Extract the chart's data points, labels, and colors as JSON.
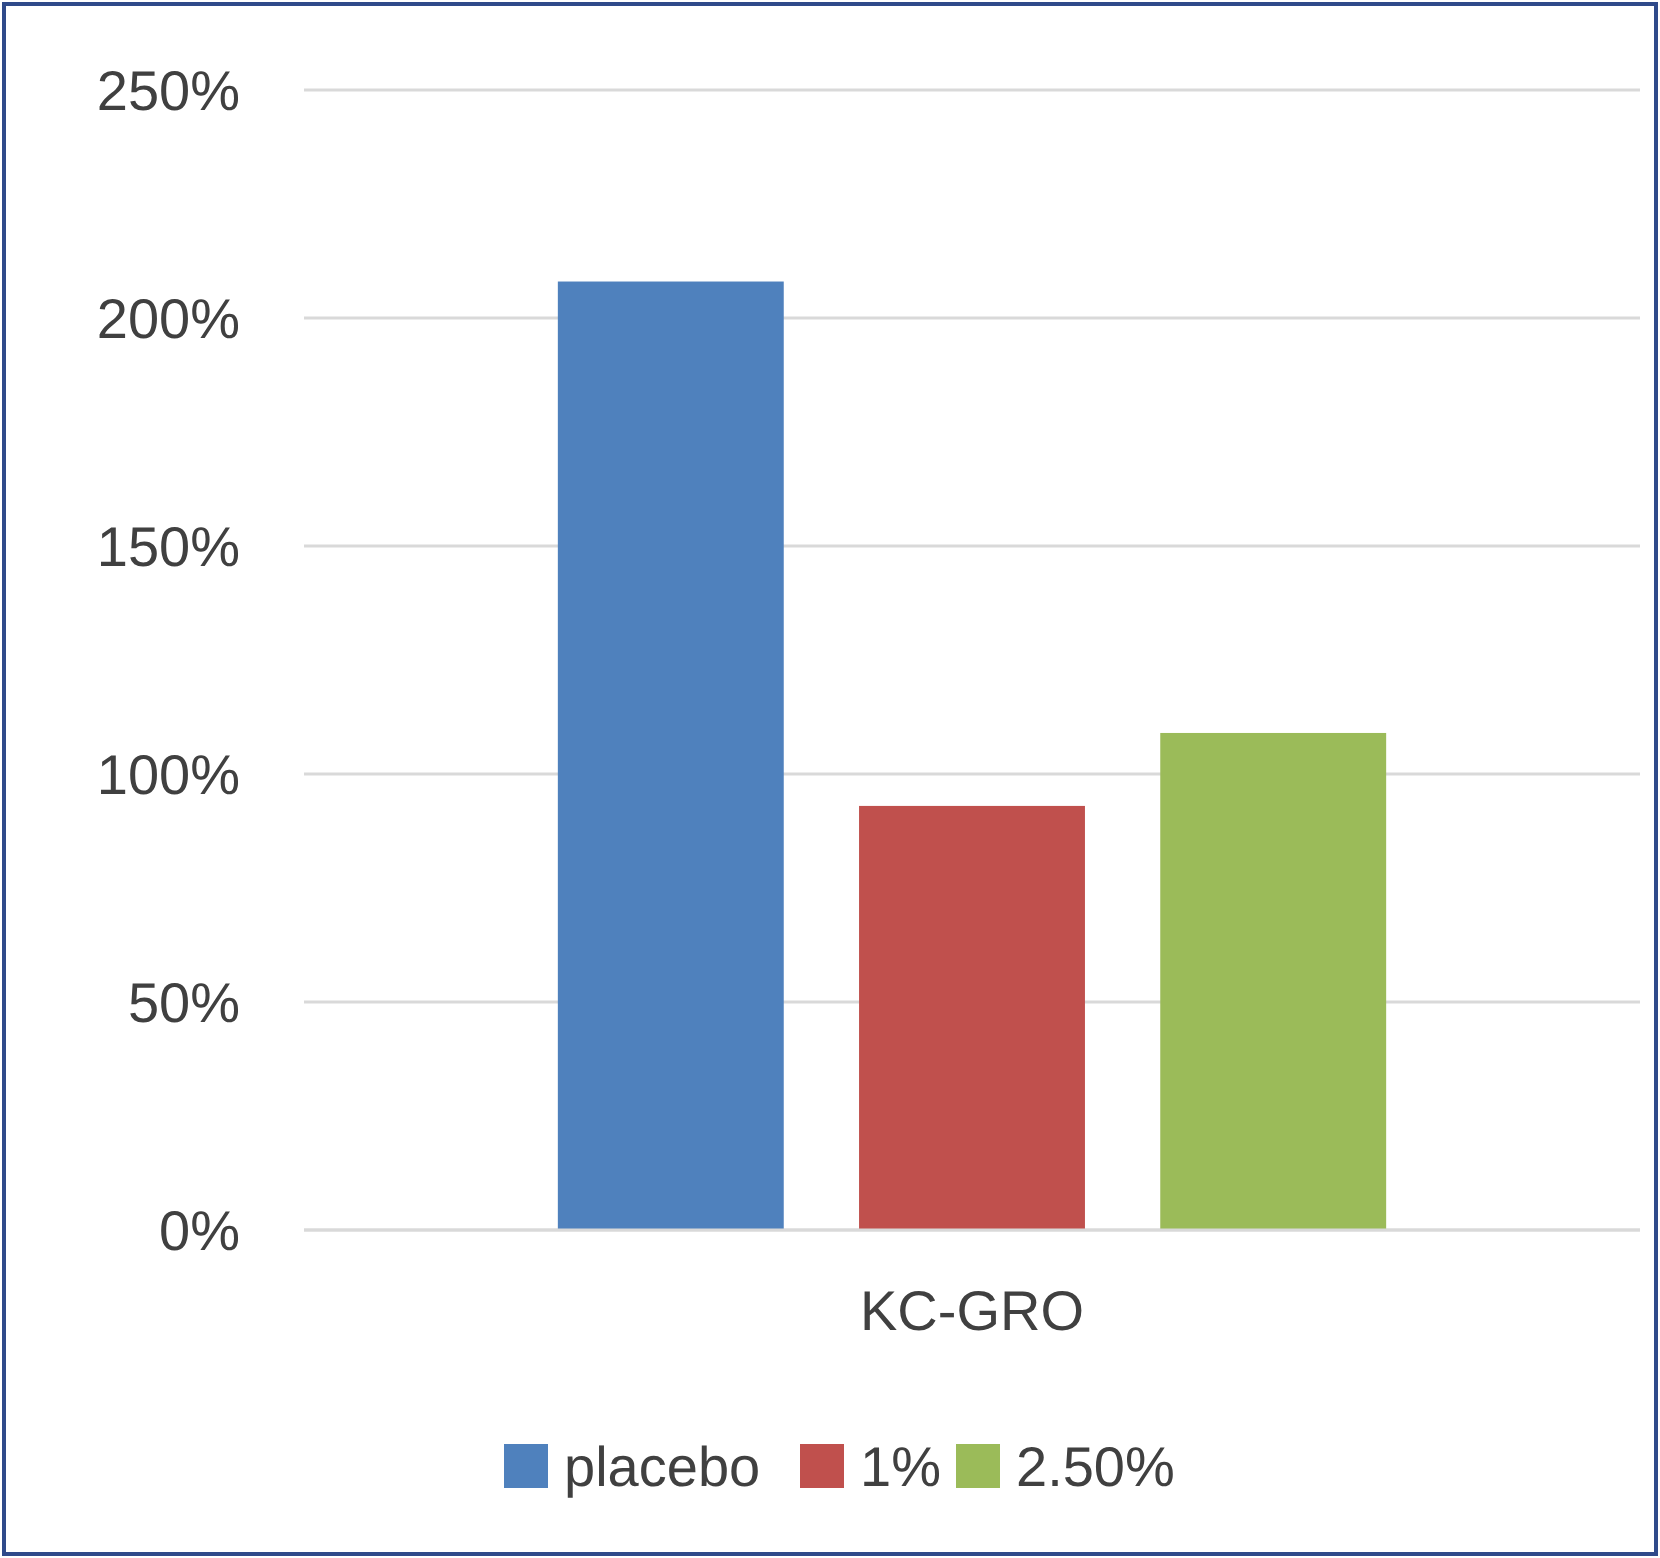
{
  "chart_data": {
    "type": "bar",
    "categories": [
      "KC-GRO"
    ],
    "series": [
      {
        "name": "placebo",
        "color": "#4f81bd",
        "values": [
          208
        ]
      },
      {
        "name": "1%",
        "color": "#c0504d",
        "values": [
          93
        ]
      },
      {
        "name": "2.50%",
        "color": "#9bbb59",
        "values": [
          109
        ]
      }
    ],
    "ylim": [
      0,
      250
    ],
    "yticks": [
      {
        "value": 0,
        "label": "0%"
      },
      {
        "value": 50,
        "label": "50%"
      },
      {
        "value": 100,
        "label": "100%"
      },
      {
        "value": 150,
        "label": "150%"
      },
      {
        "value": 200,
        "label": "200%"
      },
      {
        "value": 250,
        "label": "250%"
      }
    ],
    "grid": "y",
    "legend": "bottom"
  }
}
